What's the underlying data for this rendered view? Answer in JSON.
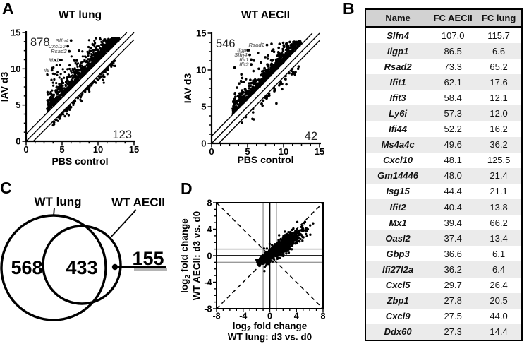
{
  "figure": {
    "panel_labels": {
      "A": "A",
      "B": "B",
      "C": "C",
      "D": "D"
    }
  },
  "table": {
    "headers": [
      "Name",
      "FC AECII",
      "FC lung"
    ],
    "rows": [
      [
        "Slfn4",
        "107.0",
        "115.7"
      ],
      [
        "Iigp1",
        "86.5",
        "6.6"
      ],
      [
        "Rsad2",
        "73.3",
        "65.2"
      ],
      [
        "Ifit1",
        "62.1",
        "17.6"
      ],
      [
        "Ifit3",
        "58.4",
        "12.1"
      ],
      [
        "Ly6i",
        "57.3",
        "12.0"
      ],
      [
        "Ifi44",
        "52.2",
        "16.2"
      ],
      [
        "Ms4a4c",
        "49.6",
        "36.2"
      ],
      [
        "Cxcl10",
        "48.1",
        "125.5"
      ],
      [
        "Gm14446",
        "48.0",
        "21.4"
      ],
      [
        "Isg15",
        "44.4",
        "21.1"
      ],
      [
        "Ifit2",
        "40.4",
        "13.8"
      ],
      [
        "Mx1",
        "39.4",
        "66.2"
      ],
      [
        "Oasl2",
        "37.4",
        "13.4"
      ],
      [
        "Gbp3",
        "36.6",
        "6.1"
      ],
      [
        "Ifi27l2a",
        "36.2",
        "6.4"
      ],
      [
        "Cxcl5",
        "29.7",
        "26.4"
      ],
      [
        "Zbp1",
        "27.8",
        "20.5"
      ],
      [
        "Cxcl9",
        "27.5",
        "44.0"
      ],
      [
        "Ddx60",
        "27.3",
        "14.4"
      ]
    ]
  },
  "chart_data": [
    {
      "id": "wt_lung_scatter",
      "type": "scatter",
      "panel": "A",
      "title": "WT lung",
      "xlabel": "PBS control",
      "ylabel": "IAV d3",
      "xlim": [
        0,
        15
      ],
      "ylim": [
        0,
        15
      ],
      "xticks": [
        0,
        5,
        10,
        15
      ],
      "yticks": [
        0,
        5,
        10,
        15
      ],
      "minor_tick_step": 1.25,
      "diagonal_offsets": [
        1,
        0,
        -1
      ],
      "count_up_label": "878",
      "count_down_label": "123",
      "gene_labels": [
        {
          "text": "Slfn4",
          "x": 6.25,
          "y": 13.9
        },
        {
          "text": "Cxcl10",
          "x": 5.8,
          "y": 13.1
        },
        {
          "text": "Rsad2",
          "x": 6.0,
          "y": 12.4
        },
        {
          "text": "Mx1",
          "x": 4.9,
          "y": 11.2
        },
        {
          "text": "Il6",
          "x": 3.6,
          "y": 9.8
        }
      ],
      "point_clouds": [
        {
          "name": "upregulated",
          "n": 878,
          "side": "above",
          "x_min": 2.9,
          "x_max": 12.9,
          "x_pow": 0.95,
          "offset": 1,
          "spread": 0.85,
          "low_x_boost": 0.22,
          "y_cap": 14.25
        },
        {
          "name": "downregulated",
          "n": 123,
          "side": "below",
          "x_min": 3.6,
          "x_max": 12.6,
          "x_pow": 0.9,
          "offset": 1,
          "spread": 0.32,
          "y_floor": 0.5
        }
      ]
    },
    {
      "id": "wt_aecii_scatter",
      "type": "scatter",
      "panel": "A",
      "title": "WT AECII",
      "xlabel": "PBS control",
      "ylabel": "IAV d3",
      "xlim": [
        0,
        15
      ],
      "ylim": [
        0,
        15
      ],
      "xticks": [
        0,
        5,
        10,
        15
      ],
      "yticks": [
        0,
        5,
        10,
        15
      ],
      "minor_tick_step": 1.25,
      "diagonal_offsets": [
        1,
        0,
        -1
      ],
      "count_up_label": "546",
      "count_down_label": "42",
      "gene_labels": [
        {
          "text": "Rsad2",
          "x": 7.7,
          "y": 13.4
        },
        {
          "text": "Iigp",
          "x": 5.2,
          "y": 12.7
        },
        {
          "text": "Slfn4",
          "x": 5.3,
          "y": 12.05
        },
        {
          "text": "Ifit1",
          "x": 5.5,
          "y": 11.4
        },
        {
          "text": "Ifit3",
          "x": 5.5,
          "y": 10.75
        }
      ],
      "point_clouds": [
        {
          "name": "upregulated",
          "n": 546,
          "side": "above",
          "x_min": 2.9,
          "x_max": 12.4,
          "x_pow": 0.95,
          "offset": 1,
          "spread": 0.8,
          "low_x_boost": 0.2,
          "y_cap": 13.9
        },
        {
          "name": "downregulated",
          "n": 42,
          "side": "below",
          "x_min": 4.2,
          "x_max": 12.2,
          "x_pow": 0.9,
          "offset": 1,
          "spread": 0.5,
          "y_floor": 0.8
        }
      ]
    },
    {
      "id": "overlap_venn",
      "type": "venn",
      "panel": "C",
      "left_label": "WT lung",
      "right_label": "WT AECII",
      "left_only": "568",
      "overlap": "433",
      "right_only": "155"
    },
    {
      "id": "fc_scatter",
      "type": "scatter",
      "panel": "D",
      "xlabel_line1_parts": [
        {
          "t": "log"
        },
        {
          "t": "2",
          "sub": true
        },
        {
          "t": " fold change"
        }
      ],
      "xlabel_line2": "WT lung: d3 vs. d0",
      "ylabel_line1_parts": [
        {
          "t": "log"
        },
        {
          "t": "2",
          "sub": true
        },
        {
          "t": " fold change"
        }
      ],
      "ylabel_line2": "WT AECII: d3 vs. d0",
      "xlim": [
        -8,
        8
      ],
      "ylim": [
        -8,
        8
      ],
      "xticks": [
        -8,
        -4,
        0,
        4,
        8
      ],
      "yticks": [
        -8,
        -4,
        0,
        4,
        8
      ],
      "minor_tick_step": 1,
      "ref_lines": {
        "solid_black": [
          0
        ],
        "gray": [
          -1,
          1
        ],
        "dashed_diagonals": true
      },
      "point_clusters": [
        {
          "n": 430,
          "cx": 2.5,
          "cy": 1.9,
          "sx": 1.3,
          "sy": 1.05,
          "corr": 0.8
        },
        {
          "n": 180,
          "cx": 1.6,
          "cy": 1.05,
          "sx": 0.55,
          "sy": 0.4,
          "corr": 0.3
        },
        {
          "n": 150,
          "cx": -0.75,
          "cy": -0.5,
          "sx": 0.6,
          "sy": 0.5,
          "corr": 0.45
        },
        {
          "n": 60,
          "cx": 0.3,
          "cy": 0.3,
          "sx": 0.7,
          "sy": 0.55,
          "corr": 0.5
        }
      ]
    }
  ]
}
